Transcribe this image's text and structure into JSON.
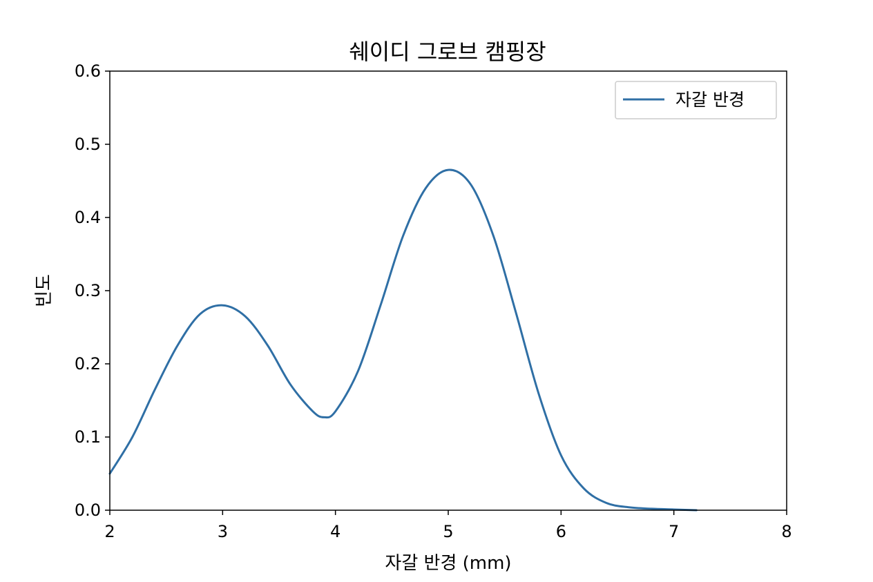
{
  "chart_data": {
    "type": "line",
    "title": "쉐이디 그로브 캠핑장",
    "xlabel": "자갈 반경 (mm)",
    "ylabel": "빈도",
    "xlim": [
      2,
      8
    ],
    "ylim": [
      0,
      0.6
    ],
    "x_ticks": [
      "2",
      "3",
      "4",
      "5",
      "6",
      "7",
      "8"
    ],
    "y_ticks": [
      "0.0",
      "0.1",
      "0.2",
      "0.3",
      "0.4",
      "0.5",
      "0.6"
    ],
    "legend_position": "top-right",
    "grid": false,
    "series": [
      {
        "name": "자갈 반경",
        "color": "#2f6fa5",
        "x": [
          2.0,
          2.2,
          2.4,
          2.6,
          2.8,
          3.0,
          3.2,
          3.4,
          3.6,
          3.8,
          3.9,
          4.0,
          4.2,
          4.4,
          4.6,
          4.8,
          5.0,
          5.2,
          5.4,
          5.6,
          5.8,
          6.0,
          6.2,
          6.4,
          6.6,
          6.8,
          7.0,
          7.2
        ],
        "y": [
          0.05,
          0.1,
          0.165,
          0.225,
          0.268,
          0.28,
          0.265,
          0.225,
          0.172,
          0.135,
          0.127,
          0.135,
          0.19,
          0.28,
          0.375,
          0.44,
          0.465,
          0.445,
          0.375,
          0.27,
          0.16,
          0.075,
          0.03,
          0.01,
          0.004,
          0.002,
          0.001,
          0.0
        ]
      }
    ]
  }
}
